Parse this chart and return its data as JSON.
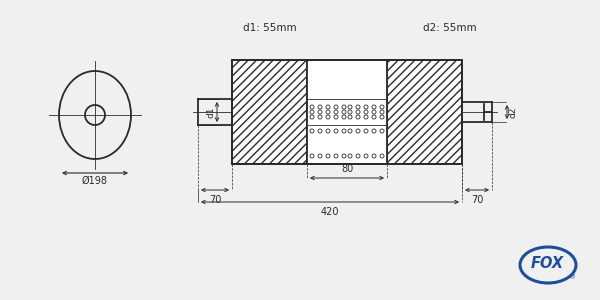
{
  "bg_color": "#f0f0f0",
  "line_color": "#2a2a2a",
  "label_d1_top": "d1: 55mm",
  "label_d2_top": "d2: 55mm",
  "label_phi198": "Ø198",
  "label_80": "80",
  "label_420": "420",
  "label_70_left": "70",
  "label_70_right": "70",
  "label_d1_side": "d1",
  "label_d2_side": "d2",
  "fox_text": "FOX",
  "fox_color": "#1a4fa0",
  "fig_width": 6.0,
  "fig_height": 3.0,
  "dpi": 100
}
